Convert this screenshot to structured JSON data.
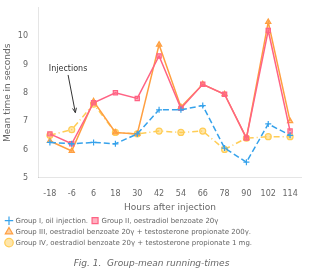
{
  "chart_data": {
    "type": "line",
    "title": "Fig. 1.  Group-mean running-times",
    "x_label": "Hours after injection",
    "y_label": "Mean time in seconds",
    "x": [
      -18,
      -6,
      6,
      18,
      30,
      42,
      54,
      66,
      78,
      90,
      102,
      114
    ],
    "series": [
      {
        "name": "Group I, oil injection.",
        "values": [
          6.25,
          6.2,
          6.25,
          6.2,
          6.55,
          7.4,
          7.4,
          7.55,
          6.05,
          5.55,
          6.9,
          6.5
        ],
        "marker": "plus",
        "line_style": "dashed"
      },
      {
        "name": "Group II, oestradiol benzoate 20γ",
        "values": [
          6.55,
          6.2,
          7.65,
          8.0,
          7.8,
          9.3,
          7.45,
          8.3,
          7.95,
          6.4,
          10.2,
          6.65
        ],
        "marker": "square",
        "line_style": "solid"
      },
      {
        "name": "Group III, oestradiol benzoate 20γ + testosterone propionate 200γ.",
        "values": [
          6.3,
          5.95,
          7.7,
          6.6,
          6.55,
          9.7,
          7.5,
          8.3,
          7.95,
          6.4,
          10.5,
          7.0
        ],
        "marker": "triangle",
        "line_style": "solid"
      },
      {
        "name": "Group IV, oestradiol benzoate 20γ + testosterone propionate 1 mg.",
        "values": [
          6.5,
          6.7,
          7.6,
          6.6,
          6.55,
          6.65,
          6.6,
          6.65,
          6.0,
          6.4,
          6.45,
          6.45
        ],
        "marker": "circle",
        "line_style": "dashdot"
      }
    ],
    "xlim": [
      -24,
      120
    ],
    "xticks": [
      -18,
      -6,
      6,
      18,
      30,
      42,
      54,
      66,
      78,
      90,
      102,
      114
    ],
    "ylim": [
      5,
      11
    ],
    "yticks": [
      5,
      6,
      7,
      8,
      9,
      10
    ],
    "grid": false,
    "legend": "bottom",
    "annotations": [
      {
        "text": "Injections",
        "x": -8,
        "y": 8.7,
        "arrow_to": [
          -4,
          7.3
        ]
      }
    ]
  }
}
